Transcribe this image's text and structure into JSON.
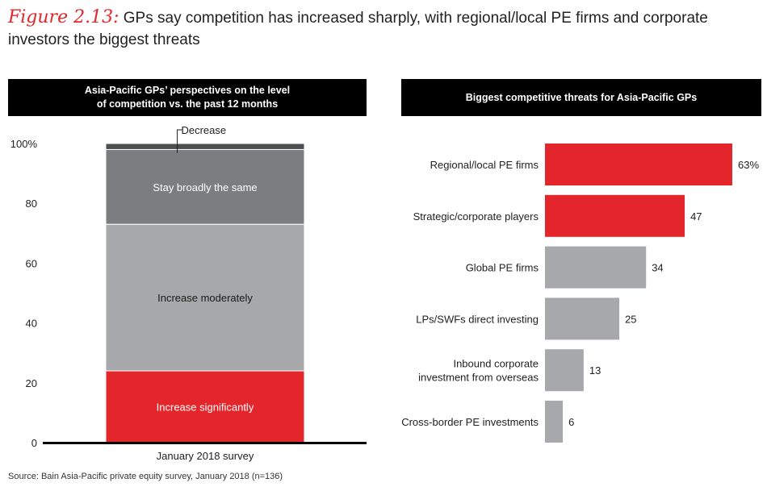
{
  "figure": {
    "label": "Figure 2.13:",
    "text": "GPs say competition has increased sharply, with regional/local PE firms and corporate investors the biggest threats"
  },
  "source": "Source: Bain Asia-Pacific private equity survey, January 2018 (n=136)",
  "colors": {
    "red": "#e3262b",
    "dark_gray": "#4d4e50",
    "mid_gray": "#7c7d80",
    "light_gray": "#a7a8ab",
    "black": "#000000"
  },
  "chart_data": [
    {
      "type": "bar",
      "stacked": true,
      "title": "Asia-Pacific GPs’ perspectives on the level of competition vs. the past 12 months",
      "title_lines": [
        "Asia-Pacific GPs’ perspectives on the level",
        "of competition vs. the past 12 months"
      ],
      "categories": [
        "January 2018 survey"
      ],
      "series": [
        {
          "name": "Increase significantly",
          "values": [
            24
          ],
          "color": "#e3262b"
        },
        {
          "name": "Increase moderately",
          "values": [
            49
          ],
          "color": "#a7a8ab"
        },
        {
          "name": "Stay broadly the same",
          "values": [
            25
          ],
          "color": "#7c7d80"
        },
        {
          "name": "Decrease",
          "values": [
            2
          ],
          "color": "#4d4e50"
        }
      ],
      "y_ticks": [
        "0",
        "20",
        "40",
        "60",
        "80",
        "100%"
      ],
      "y_tick_values": [
        0,
        20,
        40,
        60,
        80,
        100
      ],
      "ylim": [
        0,
        100
      ],
      "grid": false
    },
    {
      "type": "bar",
      "orientation": "horizontal",
      "title": "Biggest competitive threats for Asia-Pacific GPs",
      "categories": [
        [
          "Regional/local PE firms"
        ],
        [
          "Strategic/corporate players"
        ],
        [
          "Global PE firms"
        ],
        [
          "LPs/SWFs direct investing"
        ],
        [
          "Inbound corporate",
          "investment from overseas"
        ],
        [
          "Cross-border PE investments"
        ]
      ],
      "values": [
        63,
        47,
        34,
        25,
        13,
        6
      ],
      "value_labels": [
        "63%",
        "47",
        "34",
        "25",
        "13",
        "6"
      ],
      "colors": [
        "#e3262b",
        "#e3262b",
        "#a7a8ab",
        "#a7a8ab",
        "#a7a8ab",
        "#a7a8ab"
      ],
      "xlim": [
        0,
        63
      ],
      "grid": false
    }
  ]
}
